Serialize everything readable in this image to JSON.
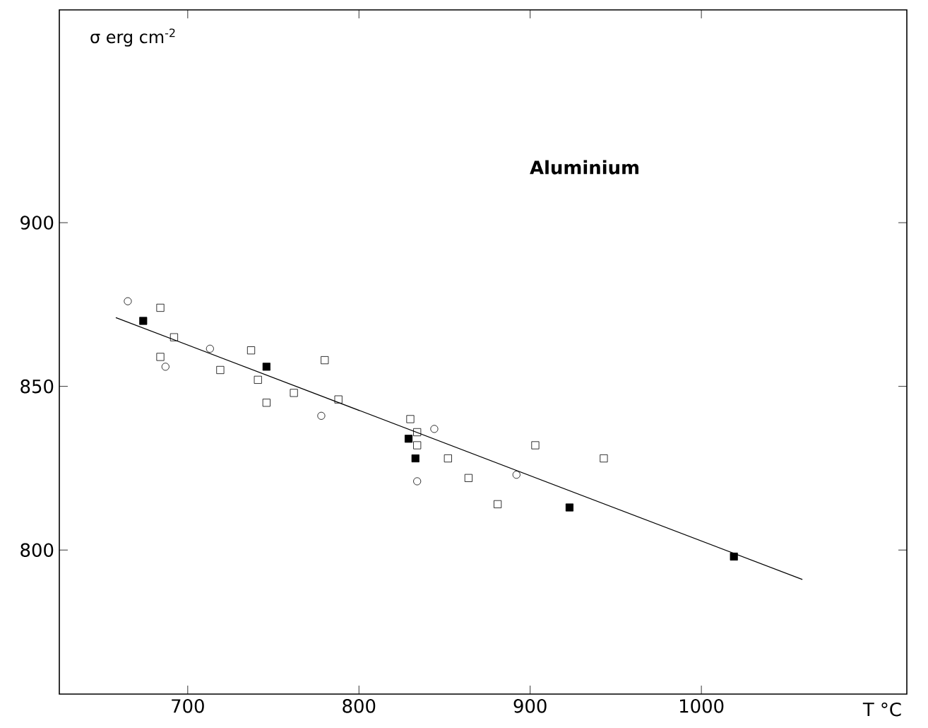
{
  "chart_data": {
    "type": "scatter",
    "xlabel": "T °C",
    "ylabel": "σ  erg  cm$^{-2}$",
    "annotations": [
      "Aluminium"
    ],
    "xlim": [
      625,
      1120
    ],
    "ylim": [
      756,
      965
    ],
    "xticks": [
      700,
      800,
      900,
      1000
    ],
    "yticks": [
      800,
      850,
      900
    ],
    "series": [
      {
        "marker": "circle",
        "color": "#ffffff",
        "x": [
          665,
          713,
          687,
          778,
          844,
          834,
          892
        ],
        "values": [
          876,
          861.5,
          856,
          841,
          837,
          821,
          823
        ]
      },
      {
        "marker": "square",
        "color": "#ffffff",
        "x": [
          684,
          692,
          737,
          684,
          719,
          780,
          741,
          762,
          788,
          746,
          830,
          834,
          834,
          852,
          864,
          881,
          903,
          943
        ],
        "values": [
          874,
          865,
          861,
          859,
          855,
          858,
          852,
          848,
          846,
          845,
          840,
          836,
          832,
          828,
          822,
          814,
          832,
          828
        ]
      },
      {
        "marker": "square",
        "color": "#000000",
        "x": [
          674,
          746,
          829,
          833,
          923,
          1019
        ],
        "values": [
          870,
          856,
          834,
          828,
          813,
          798
        ]
      },
      {
        "type": "line",
        "color": "#000000",
        "x": [
          658,
          1059
        ],
        "values": [
          871,
          791
        ]
      }
    ]
  }
}
